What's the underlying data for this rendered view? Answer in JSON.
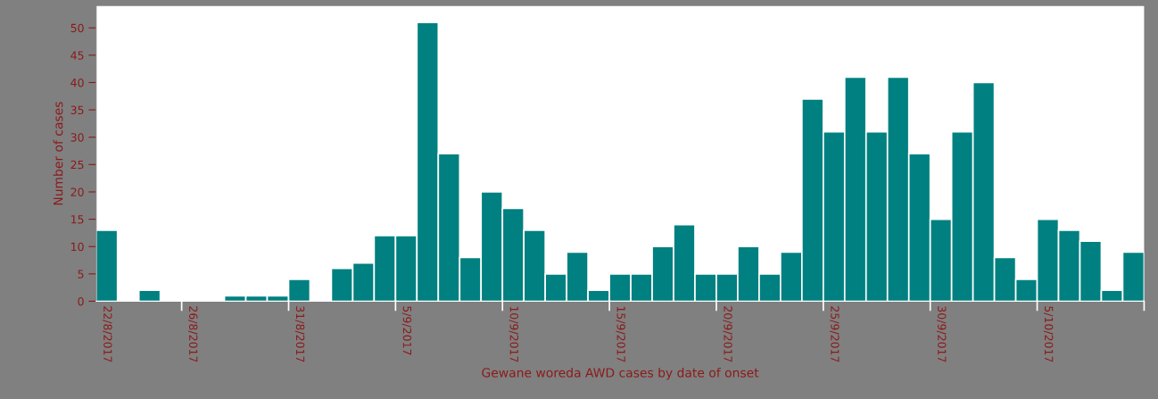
{
  "chart_data": {
    "type": "bar",
    "xlabel": "Gewane woreda AWD cases by date of onset",
    "ylabel": "Number of cases",
    "categories": [
      "22/8/2017",
      null,
      null,
      null,
      "26/8/2017",
      null,
      null,
      null,
      null,
      "31/8/2017",
      null,
      null,
      null,
      null,
      "5/9/2017",
      null,
      null,
      null,
      null,
      "10/9/2017",
      null,
      null,
      null,
      null,
      "15/9/2017",
      null,
      null,
      null,
      null,
      "20/9/2017",
      null,
      null,
      null,
      null,
      "25/9/2017",
      null,
      null,
      null,
      null,
      "30/9/2017",
      null,
      null,
      null,
      null,
      "5/10/2017",
      null,
      null,
      null,
      null
    ],
    "values": [
      13,
      0,
      2,
      0,
      0,
      0,
      1,
      1,
      1,
      4,
      0,
      6,
      7,
      12,
      12,
      51,
      27,
      8,
      20,
      17,
      13,
      5,
      9,
      2,
      5,
      5,
      10,
      14,
      5,
      5,
      10,
      5,
      9,
      37,
      31,
      41,
      31,
      41,
      27,
      15,
      31,
      40,
      8,
      4,
      15,
      13,
      11,
      2,
      9
    ],
    "color": "#008080",
    "ylim": [
      0,
      54
    ],
    "yticks": [
      0,
      5,
      10,
      15,
      20,
      25,
      30,
      35,
      40,
      45,
      50
    ]
  }
}
